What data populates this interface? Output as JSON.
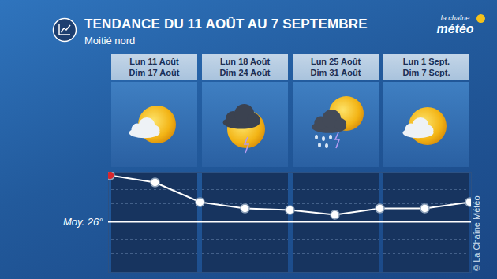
{
  "chart_data": {
    "type": "line",
    "title": "TENDANCE DU 11 AOÛT AU 7 SEPTEMBRE",
    "subtitle": "Moitié nord",
    "logo": [
      "la chaîne",
      "météo"
    ],
    "credit": "© La Chaîne Météo",
    "periods": [
      [
        "Lun 11 Août",
        "Dim 17 Août"
      ],
      [
        "Lun 18 Août",
        "Dim 24 Août"
      ],
      [
        "Lun 25 Août",
        "Dim 31 Août"
      ],
      [
        "Lun 1 Sept.",
        "Dim 7 Sept."
      ]
    ],
    "categories": [
      null,
      null,
      null,
      null,
      null,
      null,
      null,
      null,
      null
    ],
    "values": [
      31.9,
      31.0,
      28.5,
      27.7,
      27.5,
      26.9,
      27.7,
      27.7,
      28.5
    ],
    "color": "#ffffff",
    "colors": [
      "#d7262e",
      "#ffffff",
      "#ffffff",
      "#ffffff",
      "#ffffff",
      "#ffffff",
      "#ffffff",
      "#ffffff",
      "#ffffff"
    ],
    "marker": "circle",
    "ylim": [
      19.6,
      32.3
    ],
    "yticks": [
      {
        "value": 26,
        "label": "Moy. 26°"
      }
    ],
    "tick_labels": "y"
  }
}
